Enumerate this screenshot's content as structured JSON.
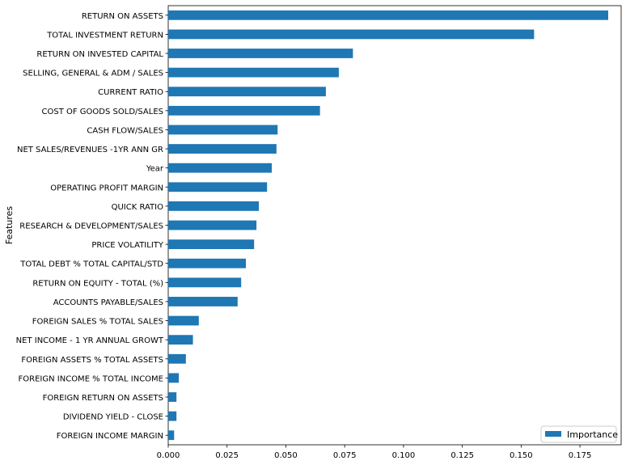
{
  "chart_data": {
    "type": "bar",
    "orientation": "horizontal",
    "ylabel": "Features",
    "xlabel": "",
    "xlim": [
      0,
      0.1925
    ],
    "xticks": [
      0.0,
      0.025,
      0.05,
      0.075,
      0.1,
      0.125,
      0.15,
      0.175
    ],
    "xtick_labels": [
      "0.000",
      "0.025",
      "0.050",
      "0.075",
      "0.100",
      "0.125",
      "0.150",
      "0.175"
    ],
    "legend": {
      "position": "bottom-right",
      "entries": [
        "Importance"
      ]
    },
    "grid": false,
    "series": [
      {
        "name": "Importance",
        "color": "#1f77b4",
        "categories": [
          "RETURN ON ASSETS",
          "TOTAL INVESTMENT RETURN",
          "RETURN ON INVESTED CAPITAL",
          "SELLING, GENERAL & ADM / SALES",
          "CURRENT RATIO",
          "COST OF GOODS SOLD/SALES",
          "CASH FLOW/SALES",
          "NET SALES/REVENUES -1YR ANN GR",
          "Year",
          "OPERATING PROFIT MARGIN",
          "QUICK RATIO",
          "RESEARCH & DEVELOPMENT/SALES",
          "PRICE VOLATILITY",
          "TOTAL DEBT % TOTAL CAPITAL/STD",
          "RETURN ON EQUITY - TOTAL (%)",
          "ACCOUNTS PAYABLE/SALES",
          "FOREIGN SALES % TOTAL SALES",
          "NET INCOME - 1 YR ANNUAL GROWT",
          "FOREIGN ASSETS % TOTAL ASSETS",
          "FOREIGN INCOME % TOTAL INCOME",
          "FOREIGN RETURN ON ASSETS",
          "DIVIDEND YIELD - CLOSE",
          "FOREIGN INCOME MARGIN"
        ],
        "values": [
          0.187,
          0.1555,
          0.0785,
          0.0725,
          0.067,
          0.0645,
          0.0465,
          0.046,
          0.044,
          0.042,
          0.0385,
          0.0375,
          0.0365,
          0.033,
          0.031,
          0.0295,
          0.013,
          0.0105,
          0.0075,
          0.0045,
          0.0035,
          0.0035,
          0.0025
        ]
      }
    ]
  }
}
